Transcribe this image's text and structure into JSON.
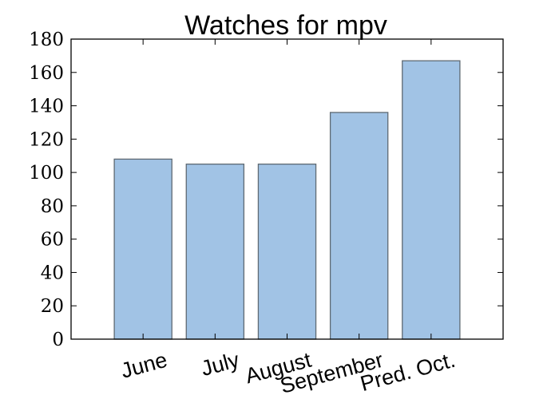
{
  "chart_data": {
    "type": "bar",
    "title": "Watches for mpv",
    "categories": [
      "June",
      "July",
      "August",
      "September",
      "Pred. Oct."
    ],
    "values": [
      108,
      105,
      105,
      136,
      167
    ],
    "xlabel": "",
    "ylabel": "",
    "ylim": [
      0,
      180
    ],
    "yticks": [
      0,
      20,
      40,
      60,
      80,
      100,
      120,
      140,
      160,
      180
    ],
    "grid": false,
    "bar_color": "#a1c3e5",
    "bar_edge_color": "#5f6a73"
  }
}
